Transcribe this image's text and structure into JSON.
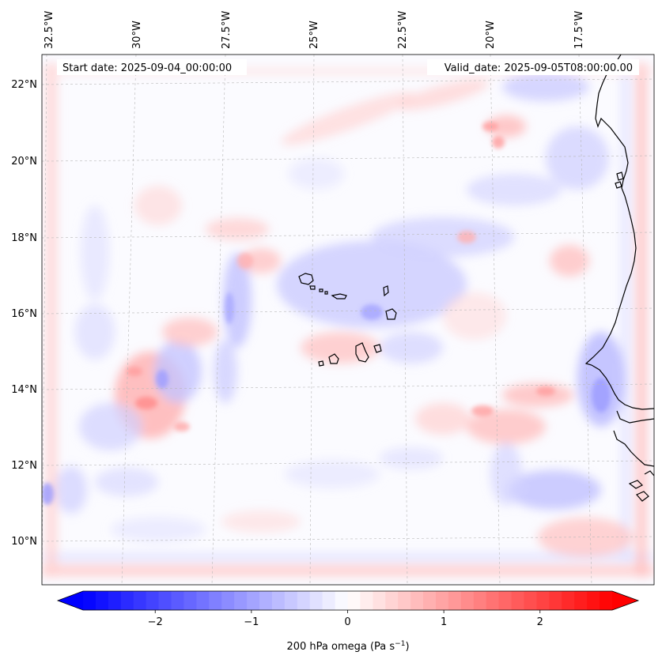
{
  "header": {
    "start_date": "Start date: 2025-09-04_00:00:00",
    "valid_date": "Valid_date: 2025-09-05T08:00:00.00"
  },
  "axes": {
    "lon_labels": [
      "32.5°W",
      "30°W",
      "27.5°W",
      "25°W",
      "22.5°W",
      "20°W",
      "17.5°W"
    ],
    "lat_labels": [
      "22°N",
      "20°N",
      "18°N",
      "16°N",
      "14°N",
      "12°N",
      "10°N"
    ]
  },
  "colorbar": {
    "label_main": "200 hPa omega (Pa s",
    "label_exp": "−1",
    "label_close": ")",
    "ticks": [
      "−2",
      "−1",
      "0",
      "1",
      "2"
    ],
    "range": [
      -2.75,
      2.75
    ],
    "colors": {
      "negative": "#0000ff",
      "zero": "#ffffff",
      "positive": "#ff0000"
    }
  },
  "map": {
    "coastline_color": "#000000",
    "grid_color": "#b0b0b0"
  }
}
